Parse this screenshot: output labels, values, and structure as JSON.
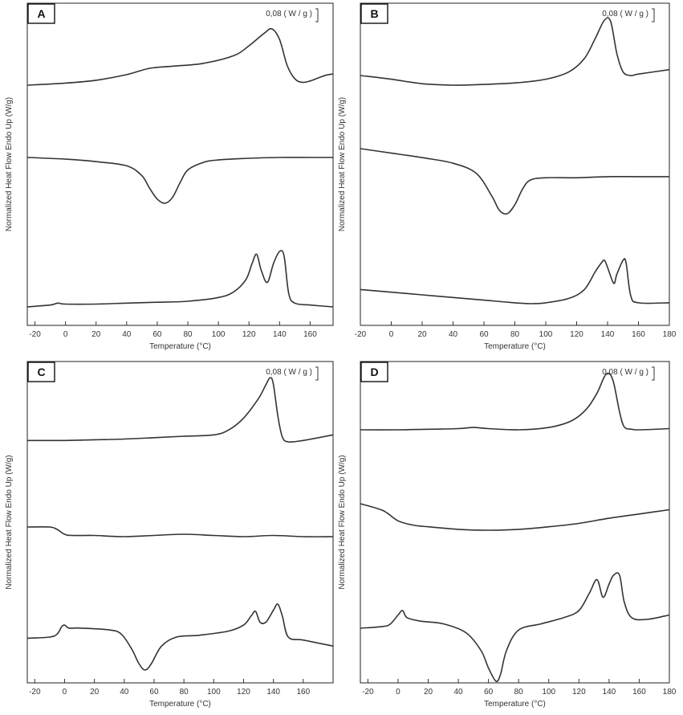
{
  "chart_data": [
    {
      "panel": "A",
      "type": "line",
      "xlabel": "Temperature (°C)",
      "ylabel": "Normalized Heat Flow Endo Up (W/g)",
      "xlim": [
        -25,
        175
      ],
      "xticks": [
        -20,
        0,
        20,
        40,
        60,
        80,
        100,
        120,
        140,
        160
      ],
      "scale_bar": "0,08 ( W / g )",
      "series": [
        {
          "x": [
            -25,
            0,
            20,
            40,
            55,
            70,
            90,
            110,
            120,
            130,
            135,
            140,
            145,
            150,
            155,
            160,
            165,
            170,
            175
          ],
          "y": [
            0.9,
            0.93,
            0.97,
            1.05,
            1.14,
            1.17,
            1.21,
            1.32,
            1.46,
            1.64,
            1.7,
            1.55,
            1.18,
            0.99,
            0.94,
            0.96,
            1.0,
            1.04,
            1.06
          ]
        },
        {
          "x": [
            -25,
            0,
            20,
            40,
            50,
            55,
            60,
            65,
            70,
            75,
            80,
            90,
            100,
            120,
            140,
            160,
            175
          ],
          "y": [
            0.0,
            -0.02,
            -0.05,
            -0.1,
            -0.22,
            -0.37,
            -0.5,
            -0.55,
            -0.48,
            -0.3,
            -0.15,
            -0.06,
            -0.03,
            -0.01,
            0.0,
            0.0,
            0.0
          ]
        },
        {
          "x": [
            -25,
            -10,
            -5,
            0,
            20,
            40,
            60,
            80,
            100,
            110,
            118,
            122,
            125,
            128,
            132,
            136,
            140,
            143,
            146,
            150,
            160,
            175
          ],
          "y": [
            -1.84,
            -1.82,
            -1.8,
            -1.81,
            -1.81,
            -1.8,
            -1.79,
            -1.78,
            -1.74,
            -1.68,
            -1.55,
            -1.38,
            -1.28,
            -1.45,
            -1.58,
            -1.38,
            -1.25,
            -1.3,
            -1.7,
            -1.8,
            -1.82,
            -1.84
          ]
        }
      ]
    },
    {
      "panel": "B",
      "type": "line",
      "xlabel": "Temperature (°C)",
      "ylabel": "Normalized Heat Flow Endo Up (W/g)",
      "xlim": [
        -20,
        180
      ],
      "xticks": [
        -20,
        0,
        20,
        40,
        60,
        80,
        100,
        120,
        140,
        160,
        180
      ],
      "scale_bar": "0,08 ( W / g )",
      "series": [
        {
          "x": [
            -20,
            0,
            20,
            40,
            60,
            80,
            100,
            115,
            125,
            132,
            138,
            142,
            146,
            150,
            155,
            160,
            180
          ],
          "y": [
            1.05,
            1.0,
            0.94,
            0.92,
            0.93,
            0.95,
            1.0,
            1.1,
            1.28,
            1.55,
            1.8,
            1.78,
            1.35,
            1.1,
            1.05,
            1.07,
            1.13
          ]
        },
        {
          "x": [
            -20,
            0,
            20,
            40,
            55,
            65,
            70,
            75,
            80,
            85,
            90,
            100,
            120,
            140,
            160,
            180
          ],
          "y": [
            0.0,
            -0.04,
            -0.08,
            -0.13,
            -0.22,
            -0.42,
            -0.55,
            -0.58,
            -0.5,
            -0.36,
            -0.28,
            -0.26,
            -0.26,
            -0.25,
            -0.25,
            -0.25
          ]
        },
        {
          "x": [
            -20,
            0,
            20,
            40,
            60,
            80,
            90,
            100,
            115,
            125,
            132,
            136,
            138,
            140,
            144,
            146,
            150,
            152,
            155,
            160,
            180
          ],
          "y": [
            -1.55,
            -1.58,
            -1.61,
            -1.64,
            -1.67,
            -1.7,
            -1.71,
            -1.7,
            -1.65,
            -1.55,
            -1.35,
            -1.25,
            -1.22,
            -1.3,
            -1.48,
            -1.38,
            -1.22,
            -1.25,
            -1.62,
            -1.7,
            -1.7
          ]
        }
      ]
    },
    {
      "panel": "C",
      "type": "line",
      "xlabel": "Temperature (°C)",
      "ylabel": "Normalized Heat Flow Endo Up (W/g)",
      "xlim": [
        -25,
        180
      ],
      "xticks": [
        -20,
        0,
        20,
        40,
        60,
        80,
        100,
        120,
        140,
        160
      ],
      "scale_bar": "0,08 ( W / g )",
      "series": [
        {
          "x": [
            -25,
            0,
            20,
            40,
            60,
            80,
            100,
            110,
            120,
            130,
            135,
            138,
            140,
            143,
            146,
            150,
            160,
            180
          ],
          "y": [
            1.0,
            1.0,
            1.01,
            1.02,
            1.04,
            1.06,
            1.08,
            1.15,
            1.32,
            1.6,
            1.8,
            1.9,
            1.8,
            1.35,
            1.05,
            0.98,
            1.0,
            1.08
          ]
        },
        {
          "x": [
            -25,
            -10,
            -5,
            0,
            5,
            20,
            40,
            60,
            80,
            100,
            120,
            140,
            160,
            180
          ],
          "y": [
            0.0,
            0.0,
            -0.02,
            -0.06,
            -0.07,
            -0.07,
            -0.08,
            -0.07,
            -0.06,
            -0.07,
            -0.08,
            -0.07,
            -0.08,
            -0.08
          ]
        },
        {
          "x": [
            -25,
            -10,
            -5,
            -2,
            0,
            3,
            10,
            30,
            38,
            45,
            50,
            54,
            58,
            65,
            75,
            90,
            110,
            120,
            125,
            128,
            131,
            135,
            140,
            143,
            146,
            150,
            160,
            180
          ],
          "y": [
            -1.57,
            -1.55,
            -1.5,
            -1.38,
            -1.35,
            -1.4,
            -1.4,
            -1.43,
            -1.5,
            -1.75,
            -2.0,
            -2.1,
            -2.0,
            -1.7,
            -1.55,
            -1.52,
            -1.45,
            -1.35,
            -1.2,
            -1.12,
            -1.3,
            -1.3,
            -1.1,
            -1.0,
            -1.2,
            -1.55,
            -1.6,
            -1.7
          ]
        }
      ]
    },
    {
      "panel": "D",
      "type": "line",
      "xlabel": "Temperature (°C)",
      "ylabel": "Normalized Heat Flow Endo Up (W/g)",
      "xlim": [
        -25,
        180
      ],
      "xticks": [
        -20,
        0,
        20,
        40,
        60,
        80,
        100,
        120,
        140,
        160,
        180
      ],
      "scale_bar": "0,08 ( W / g )",
      "series": [
        {
          "x": [
            -25,
            0,
            20,
            40,
            50,
            60,
            80,
            100,
            115,
            125,
            132,
            137,
            140,
            143,
            147,
            150,
            155,
            160,
            180
          ],
          "y": [
            1.0,
            1.0,
            1.01,
            1.02,
            1.04,
            1.02,
            1.0,
            1.04,
            1.15,
            1.35,
            1.62,
            1.9,
            1.95,
            1.8,
            1.3,
            1.05,
            1.01,
            1.0,
            1.02
          ]
        },
        {
          "x": [
            -25,
            -10,
            0,
            10,
            20,
            40,
            60,
            80,
            100,
            120,
            140,
            160,
            180
          ],
          "y": [
            0.45,
            0.37,
            0.25,
            0.2,
            0.18,
            0.15,
            0.14,
            0.15,
            0.18,
            0.22,
            0.28,
            0.33,
            0.38
          ]
        },
        {
          "x": [
            -25,
            -10,
            -5,
            0,
            3,
            6,
            15,
            30,
            45,
            55,
            60,
            65,
            68,
            72,
            80,
            95,
            110,
            120,
            127,
            132,
            136,
            140,
            143,
            147,
            150,
            155,
            165,
            180
          ],
          "y": [
            -1.6,
            -1.58,
            -1.55,
            -1.45,
            -1.4,
            -1.48,
            -1.52,
            -1.55,
            -1.65,
            -1.85,
            -2.05,
            -2.2,
            -2.12,
            -1.85,
            -1.62,
            -1.55,
            -1.48,
            -1.4,
            -1.2,
            -1.05,
            -1.25,
            -1.1,
            -1.0,
            -1.0,
            -1.3,
            -1.48,
            -1.5,
            -1.45
          ]
        }
      ]
    }
  ]
}
